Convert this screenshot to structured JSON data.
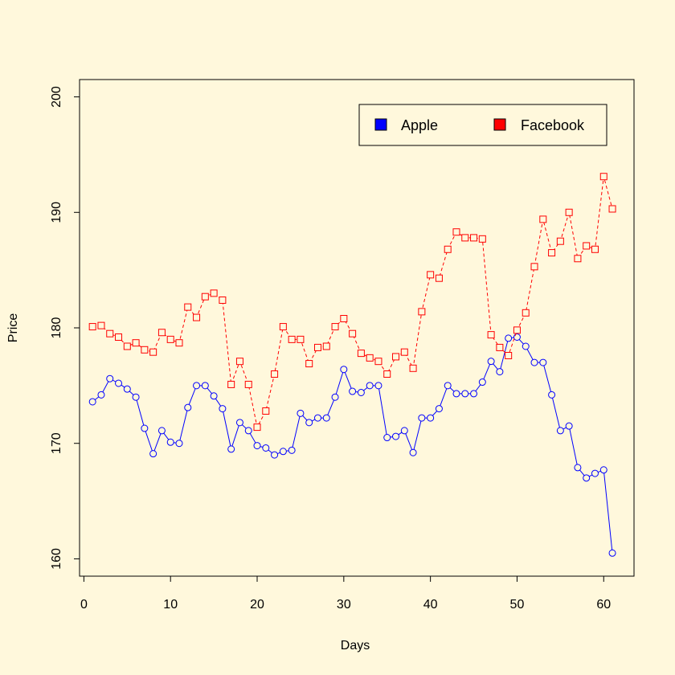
{
  "chart_data": {
    "type": "line",
    "xlabel": "Days",
    "ylabel": "Price",
    "xlim": [
      -0.5,
      63.5
    ],
    "ylim": [
      158.5,
      201.5
    ],
    "xticks": [
      0,
      10,
      20,
      30,
      40,
      50,
      60
    ],
    "yticks": [
      160,
      170,
      180,
      190,
      200
    ],
    "background": "#FFF8DC",
    "legend": {
      "placement": "top-right"
    },
    "x": [
      1,
      2,
      3,
      4,
      5,
      6,
      7,
      8,
      9,
      10,
      11,
      12,
      13,
      14,
      15,
      16,
      17,
      18,
      19,
      20,
      21,
      22,
      23,
      24,
      25,
      26,
      27,
      28,
      29,
      30,
      31,
      32,
      33,
      34,
      35,
      36,
      37,
      38,
      39,
      40,
      41,
      42,
      43,
      44,
      45,
      46,
      47,
      48,
      49,
      50,
      51,
      52,
      53,
      54,
      55,
      56,
      57,
      58,
      59,
      60,
      61
    ],
    "series": [
      {
        "name": "Apple",
        "color": "#0000FF",
        "line_style": "solid",
        "marker": "circle",
        "values": [
          173.6,
          174.2,
          175.6,
          175.2,
          174.7,
          174.0,
          171.3,
          169.1,
          171.1,
          170.1,
          170.0,
          173.1,
          175.0,
          175.0,
          174.1,
          173.0,
          169.5,
          171.8,
          171.1,
          169.8,
          169.6,
          169.0,
          169.3,
          169.4,
          172.6,
          171.8,
          172.2,
          172.2,
          174.0,
          176.4,
          174.5,
          174.4,
          175.0,
          175.0,
          170.5,
          170.6,
          171.1,
          169.2,
          172.2,
          172.2,
          173.0,
          175.0,
          174.3,
          174.3,
          174.3,
          175.3,
          177.1,
          176.2,
          179.1,
          179.2,
          178.4,
          177.0,
          177.0,
          174.2,
          171.1,
          171.5,
          167.9,
          167.0,
          167.4,
          167.7,
          160.5
        ]
      },
      {
        "name": "Facebook",
        "color": "#FF0000",
        "line_style": "dashed",
        "marker": "square",
        "values": [
          180.1,
          180.2,
          179.5,
          179.2,
          178.4,
          178.7,
          178.1,
          177.9,
          179.6,
          179.0,
          178.7,
          181.8,
          180.9,
          182.7,
          183.0,
          182.4,
          175.1,
          177.1,
          175.1,
          171.4,
          172.8,
          176.0,
          180.1,
          179.0,
          179.0,
          176.9,
          178.3,
          178.4,
          180.1,
          180.8,
          179.5,
          177.8,
          177.4,
          177.1,
          176.0,
          177.5,
          177.9,
          176.5,
          181.4,
          184.6,
          184.3,
          186.8,
          188.3,
          187.8,
          187.8,
          187.7,
          179.4,
          178.3,
          177.6,
          179.8,
          181.3,
          185.3,
          189.4,
          186.5,
          187.5,
          190.0,
          186.0,
          187.1,
          186.8,
          193.1,
          190.3
        ]
      }
    ]
  }
}
